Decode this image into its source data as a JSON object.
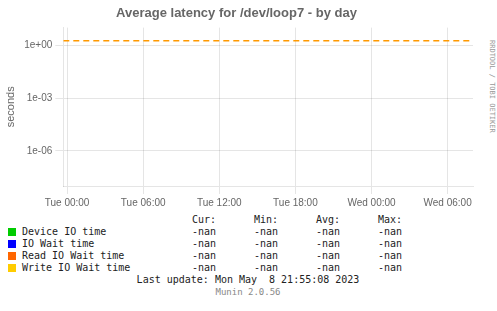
{
  "chart_data": {
    "type": "line",
    "title": "Average latency for /dev/loop7 - by day",
    "y_label": "seconds",
    "x": [],
    "xlim": [
      -0.3,
      32
    ],
    "xticks": [
      {
        "value": 0,
        "label": "Tue 00:00"
      },
      {
        "value": 6,
        "label": "Tue 06:00"
      },
      {
        "value": 12,
        "label": "Tue 12:00"
      },
      {
        "value": 18,
        "label": "Tue 18:00"
      },
      {
        "value": 24,
        "label": "Wed 00:00"
      },
      {
        "value": 30,
        "label": "Wed 06:00"
      }
    ],
    "ylim": [
      1e-08,
      10
    ],
    "yticks": [
      {
        "value": 1e-06,
        "label": "1e-06"
      },
      {
        "value": 0.001,
        "label": "1e-03"
      },
      {
        "value": 1,
        "label": "1e+00"
      }
    ],
    "log": "y",
    "grid": true,
    "legend": "bottom",
    "series": [
      {
        "name": "Device IO time",
        "color": "#00cc00",
        "values": [],
        "table_values": [
          "-nan",
          "-nan",
          "-nan",
          "-nan"
        ]
      },
      {
        "name": "IO Wait time",
        "color": "#0000ff",
        "values": [],
        "table_values": [
          "-nan",
          "-nan",
          "-nan",
          "-nan"
        ]
      },
      {
        "name": "Read IO Wait time",
        "color": "#ff6600",
        "values": [],
        "table_values": [
          "-nan",
          "-nan",
          "-nan",
          "-nan"
        ]
      },
      {
        "name": "Write IO Wait time",
        "color": "#ffcc00",
        "values": [],
        "table_values": [
          "-nan",
          "-nan",
          "-nan",
          "-nan"
        ]
      }
    ],
    "table_columns": [
      "Cur:",
      "Min:",
      "Avg:",
      "Max:"
    ],
    "reference_lines": [
      {
        "y": 1.8,
        "color": "#ff9900",
        "line_style": "dashed"
      }
    ],
    "annotations": [
      "Last update: Mon May  8 21:55:08 2023",
      "Munin 2.0.56"
    ],
    "watermark": "RRDTOOL / TOBI OETIKER"
  }
}
